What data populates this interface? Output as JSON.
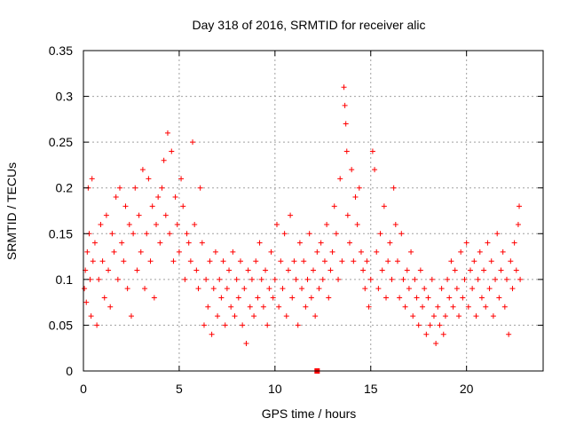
{
  "chart_data": {
    "type": "scatter",
    "title": "Day 318 of 2016, SRMTID for receiver alic",
    "xlabel": "GPS time / hours",
    "ylabel": "SRMTID / TECUs",
    "xlim": [
      0,
      24
    ],
    "ylim": [
      0,
      0.35
    ],
    "x_ticks": [
      0,
      5,
      10,
      15,
      20
    ],
    "y_ticks": [
      0,
      0.05,
      0.1,
      0.15,
      0.2,
      0.25,
      0.3,
      0.35
    ],
    "x_tick_labels": [
      "0",
      "5",
      "10",
      "15",
      "20"
    ],
    "y_tick_labels": [
      "0",
      "0.05",
      "0.1",
      "0.15",
      "0.2",
      "0.25",
      "0.3",
      "0.35"
    ],
    "grid": true,
    "marker": "+",
    "color": "#ff0000",
    "series": [
      {
        "points": [
          [
            0.05,
            0.09
          ],
          [
            0.1,
            0.11
          ],
          [
            0.15,
            0.075
          ],
          [
            0.2,
            0.13
          ],
          [
            0.25,
            0.2
          ],
          [
            0.3,
            0.15
          ],
          [
            0.35,
            0.1
          ],
          [
            0.4,
            0.06
          ],
          [
            0.45,
            0.21
          ],
          [
            0.5,
            0.12
          ],
          [
            0.6,
            0.14
          ],
          [
            0.7,
            0.05
          ],
          [
            0.8,
            0.1
          ],
          [
            0.9,
            0.16
          ],
          [
            1.0,
            0.12
          ],
          [
            1.1,
            0.08
          ],
          [
            1.2,
            0.17
          ],
          [
            1.3,
            0.11
          ],
          [
            1.4,
            0.07
          ],
          [
            1.5,
            0.15
          ],
          [
            1.6,
            0.13
          ],
          [
            1.7,
            0.19
          ],
          [
            1.8,
            0.1
          ],
          [
            1.9,
            0.2
          ],
          [
            2.0,
            0.14
          ],
          [
            2.1,
            0.12
          ],
          [
            2.2,
            0.18
          ],
          [
            2.3,
            0.09
          ],
          [
            2.4,
            0.16
          ],
          [
            2.5,
            0.06
          ],
          [
            2.6,
            0.15
          ],
          [
            2.7,
            0.2
          ],
          [
            2.8,
            0.11
          ],
          [
            2.9,
            0.17
          ],
          [
            3.0,
            0.13
          ],
          [
            3.1,
            0.22
          ],
          [
            3.2,
            0.09
          ],
          [
            3.3,
            0.15
          ],
          [
            3.4,
            0.21
          ],
          [
            3.5,
            0.12
          ],
          [
            3.6,
            0.18
          ],
          [
            3.7,
            0.08
          ],
          [
            3.8,
            0.16
          ],
          [
            3.9,
            0.19
          ],
          [
            4.0,
            0.14
          ],
          [
            4.1,
            0.2
          ],
          [
            4.2,
            0.23
          ],
          [
            4.3,
            0.17
          ],
          [
            4.4,
            0.26
          ],
          [
            4.5,
            0.15
          ],
          [
            4.6,
            0.24
          ],
          [
            4.7,
            0.12
          ],
          [
            4.8,
            0.19
          ],
          [
            4.9,
            0.16
          ],
          [
            5.0,
            0.13
          ],
          [
            5.1,
            0.21
          ],
          [
            5.2,
            0.18
          ],
          [
            5.3,
            0.1
          ],
          [
            5.4,
            0.15
          ],
          [
            5.5,
            0.14
          ],
          [
            5.6,
            0.12
          ],
          [
            5.7,
            0.25
          ],
          [
            5.8,
            0.16
          ],
          [
            5.9,
            0.11
          ],
          [
            6.0,
            0.09
          ],
          [
            6.1,
            0.2
          ],
          [
            6.2,
            0.14
          ],
          [
            6.3,
            0.05
          ],
          [
            6.4,
            0.1
          ],
          [
            6.5,
            0.07
          ],
          [
            6.6,
            0.12
          ],
          [
            6.7,
            0.04
          ],
          [
            6.8,
            0.09
          ],
          [
            6.9,
            0.13
          ],
          [
            7.0,
            0.06
          ],
          [
            7.1,
            0.1
          ],
          [
            7.2,
            0.08
          ],
          [
            7.3,
            0.12
          ],
          [
            7.4,
            0.05
          ],
          [
            7.5,
            0.09
          ],
          [
            7.6,
            0.11
          ],
          [
            7.7,
            0.07
          ],
          [
            7.8,
            0.13
          ],
          [
            7.9,
            0.06
          ],
          [
            8.0,
            0.1
          ],
          [
            8.1,
            0.08
          ],
          [
            8.2,
            0.12
          ],
          [
            8.3,
            0.05
          ],
          [
            8.4,
            0.09
          ],
          [
            8.5,
            0.03
          ],
          [
            8.6,
            0.11
          ],
          [
            8.7,
            0.07
          ],
          [
            8.8,
            0.1
          ],
          [
            8.9,
            0.06
          ],
          [
            9.0,
            0.12
          ],
          [
            9.1,
            0.08
          ],
          [
            9.2,
            0.14
          ],
          [
            9.3,
            0.1
          ],
          [
            9.4,
            0.07
          ],
          [
            9.5,
            0.11
          ],
          [
            9.6,
            0.05
          ],
          [
            9.7,
            0.09
          ],
          [
            9.8,
            0.13
          ],
          [
            9.9,
            0.08
          ],
          [
            10.0,
            0.1
          ],
          [
            10.1,
            0.16
          ],
          [
            10.2,
            0.07
          ],
          [
            10.3,
            0.12
          ],
          [
            10.4,
            0.09
          ],
          [
            10.5,
            0.15
          ],
          [
            10.6,
            0.06
          ],
          [
            10.7,
            0.11
          ],
          [
            10.8,
            0.17
          ],
          [
            10.9,
            0.08
          ],
          [
            11.0,
            0.12
          ],
          [
            11.1,
            0.1
          ],
          [
            11.2,
            0.05
          ],
          [
            11.3,
            0.14
          ],
          [
            11.4,
            0.09
          ],
          [
            11.5,
            0.12
          ],
          [
            11.6,
            0.07
          ],
          [
            11.7,
            0.1
          ],
          [
            11.8,
            0.15
          ],
          [
            11.9,
            0.08
          ],
          [
            12.0,
            0.11
          ],
          [
            12.1,
            0.06
          ],
          [
            12.2,
            0.13
          ],
          [
            12.3,
            0.09
          ],
          [
            12.4,
            0.14
          ],
          [
            12.5,
            0.1
          ],
          [
            12.6,
            0.12
          ],
          [
            12.7,
            0.16
          ],
          [
            12.8,
            0.08
          ],
          [
            12.9,
            0.11
          ],
          [
            13.0,
            0.13
          ],
          [
            13.1,
            0.18
          ],
          [
            13.2,
            0.15
          ],
          [
            13.3,
            0.1
          ],
          [
            13.4,
            0.21
          ],
          [
            13.5,
            0.12
          ],
          [
            13.6,
            0.31
          ],
          [
            13.65,
            0.29
          ],
          [
            13.7,
            0.27
          ],
          [
            13.75,
            0.24
          ],
          [
            13.8,
            0.17
          ],
          [
            13.9,
            0.14
          ],
          [
            14.0,
            0.22
          ],
          [
            14.1,
            0.12
          ],
          [
            14.2,
            0.19
          ],
          [
            14.3,
            0.16
          ],
          [
            14.4,
            0.2
          ],
          [
            14.5,
            0.13
          ],
          [
            14.6,
            0.11
          ],
          [
            14.7,
            0.09
          ],
          [
            14.8,
            0.12
          ],
          [
            14.9,
            0.07
          ],
          [
            15.0,
            0.1
          ],
          [
            15.1,
            0.24
          ],
          [
            15.2,
            0.22
          ],
          [
            15.3,
            0.13
          ],
          [
            15.4,
            0.09
          ],
          [
            15.5,
            0.15
          ],
          [
            15.6,
            0.11
          ],
          [
            15.7,
            0.18
          ],
          [
            15.8,
            0.08
          ],
          [
            15.9,
            0.12
          ],
          [
            16.0,
            0.14
          ],
          [
            16.1,
            0.1
          ],
          [
            16.2,
            0.2
          ],
          [
            16.3,
            0.16
          ],
          [
            16.4,
            0.12
          ],
          [
            16.5,
            0.08
          ],
          [
            16.6,
            0.15
          ],
          [
            16.7,
            0.1
          ],
          [
            16.8,
            0.07
          ],
          [
            16.9,
            0.11
          ],
          [
            17.0,
            0.09
          ],
          [
            17.1,
            0.13
          ],
          [
            17.2,
            0.06
          ],
          [
            17.3,
            0.1
          ],
          [
            17.4,
            0.08
          ],
          [
            17.5,
            0.05
          ],
          [
            17.6,
            0.11
          ],
          [
            17.7,
            0.07
          ],
          [
            17.8,
            0.09
          ],
          [
            17.9,
            0.04
          ],
          [
            18.0,
            0.08
          ],
          [
            18.1,
            0.05
          ],
          [
            18.2,
            0.1
          ],
          [
            18.3,
            0.06
          ],
          [
            18.4,
            0.03
          ],
          [
            18.5,
            0.07
          ],
          [
            18.6,
            0.05
          ],
          [
            18.7,
            0.09
          ],
          [
            18.8,
            0.04
          ],
          [
            18.9,
            0.06
          ],
          [
            19.0,
            0.1
          ],
          [
            19.1,
            0.08
          ],
          [
            19.2,
            0.12
          ],
          [
            19.3,
            0.07
          ],
          [
            19.4,
            0.11
          ],
          [
            19.5,
            0.09
          ],
          [
            19.6,
            0.06
          ],
          [
            19.7,
            0.13
          ],
          [
            19.8,
            0.08
          ],
          [
            19.9,
            0.1
          ],
          [
            20.0,
            0.14
          ],
          [
            20.1,
            0.07
          ],
          [
            20.2,
            0.11
          ],
          [
            20.3,
            0.09
          ],
          [
            20.4,
            0.12
          ],
          [
            20.5,
            0.06
          ],
          [
            20.6,
            0.1
          ],
          [
            20.7,
            0.13
          ],
          [
            20.8,
            0.08
          ],
          [
            20.9,
            0.11
          ],
          [
            21.0,
            0.07
          ],
          [
            21.1,
            0.14
          ],
          [
            21.2,
            0.09
          ],
          [
            21.3,
            0.12
          ],
          [
            21.4,
            0.06
          ],
          [
            21.5,
            0.1
          ],
          [
            21.6,
            0.15
          ],
          [
            21.7,
            0.08
          ],
          [
            21.8,
            0.11
          ],
          [
            21.9,
            0.13
          ],
          [
            22.0,
            0.07
          ],
          [
            22.1,
            0.1
          ],
          [
            22.2,
            0.04
          ],
          [
            22.3,
            0.12
          ],
          [
            22.4,
            0.09
          ],
          [
            22.5,
            0.14
          ],
          [
            22.6,
            0.11
          ],
          [
            22.7,
            0.16
          ],
          [
            22.75,
            0.18
          ],
          [
            22.8,
            0.1
          ]
        ]
      },
      {
        "points": [
          [
            12.2,
            0.0
          ]
        ]
      }
    ]
  }
}
